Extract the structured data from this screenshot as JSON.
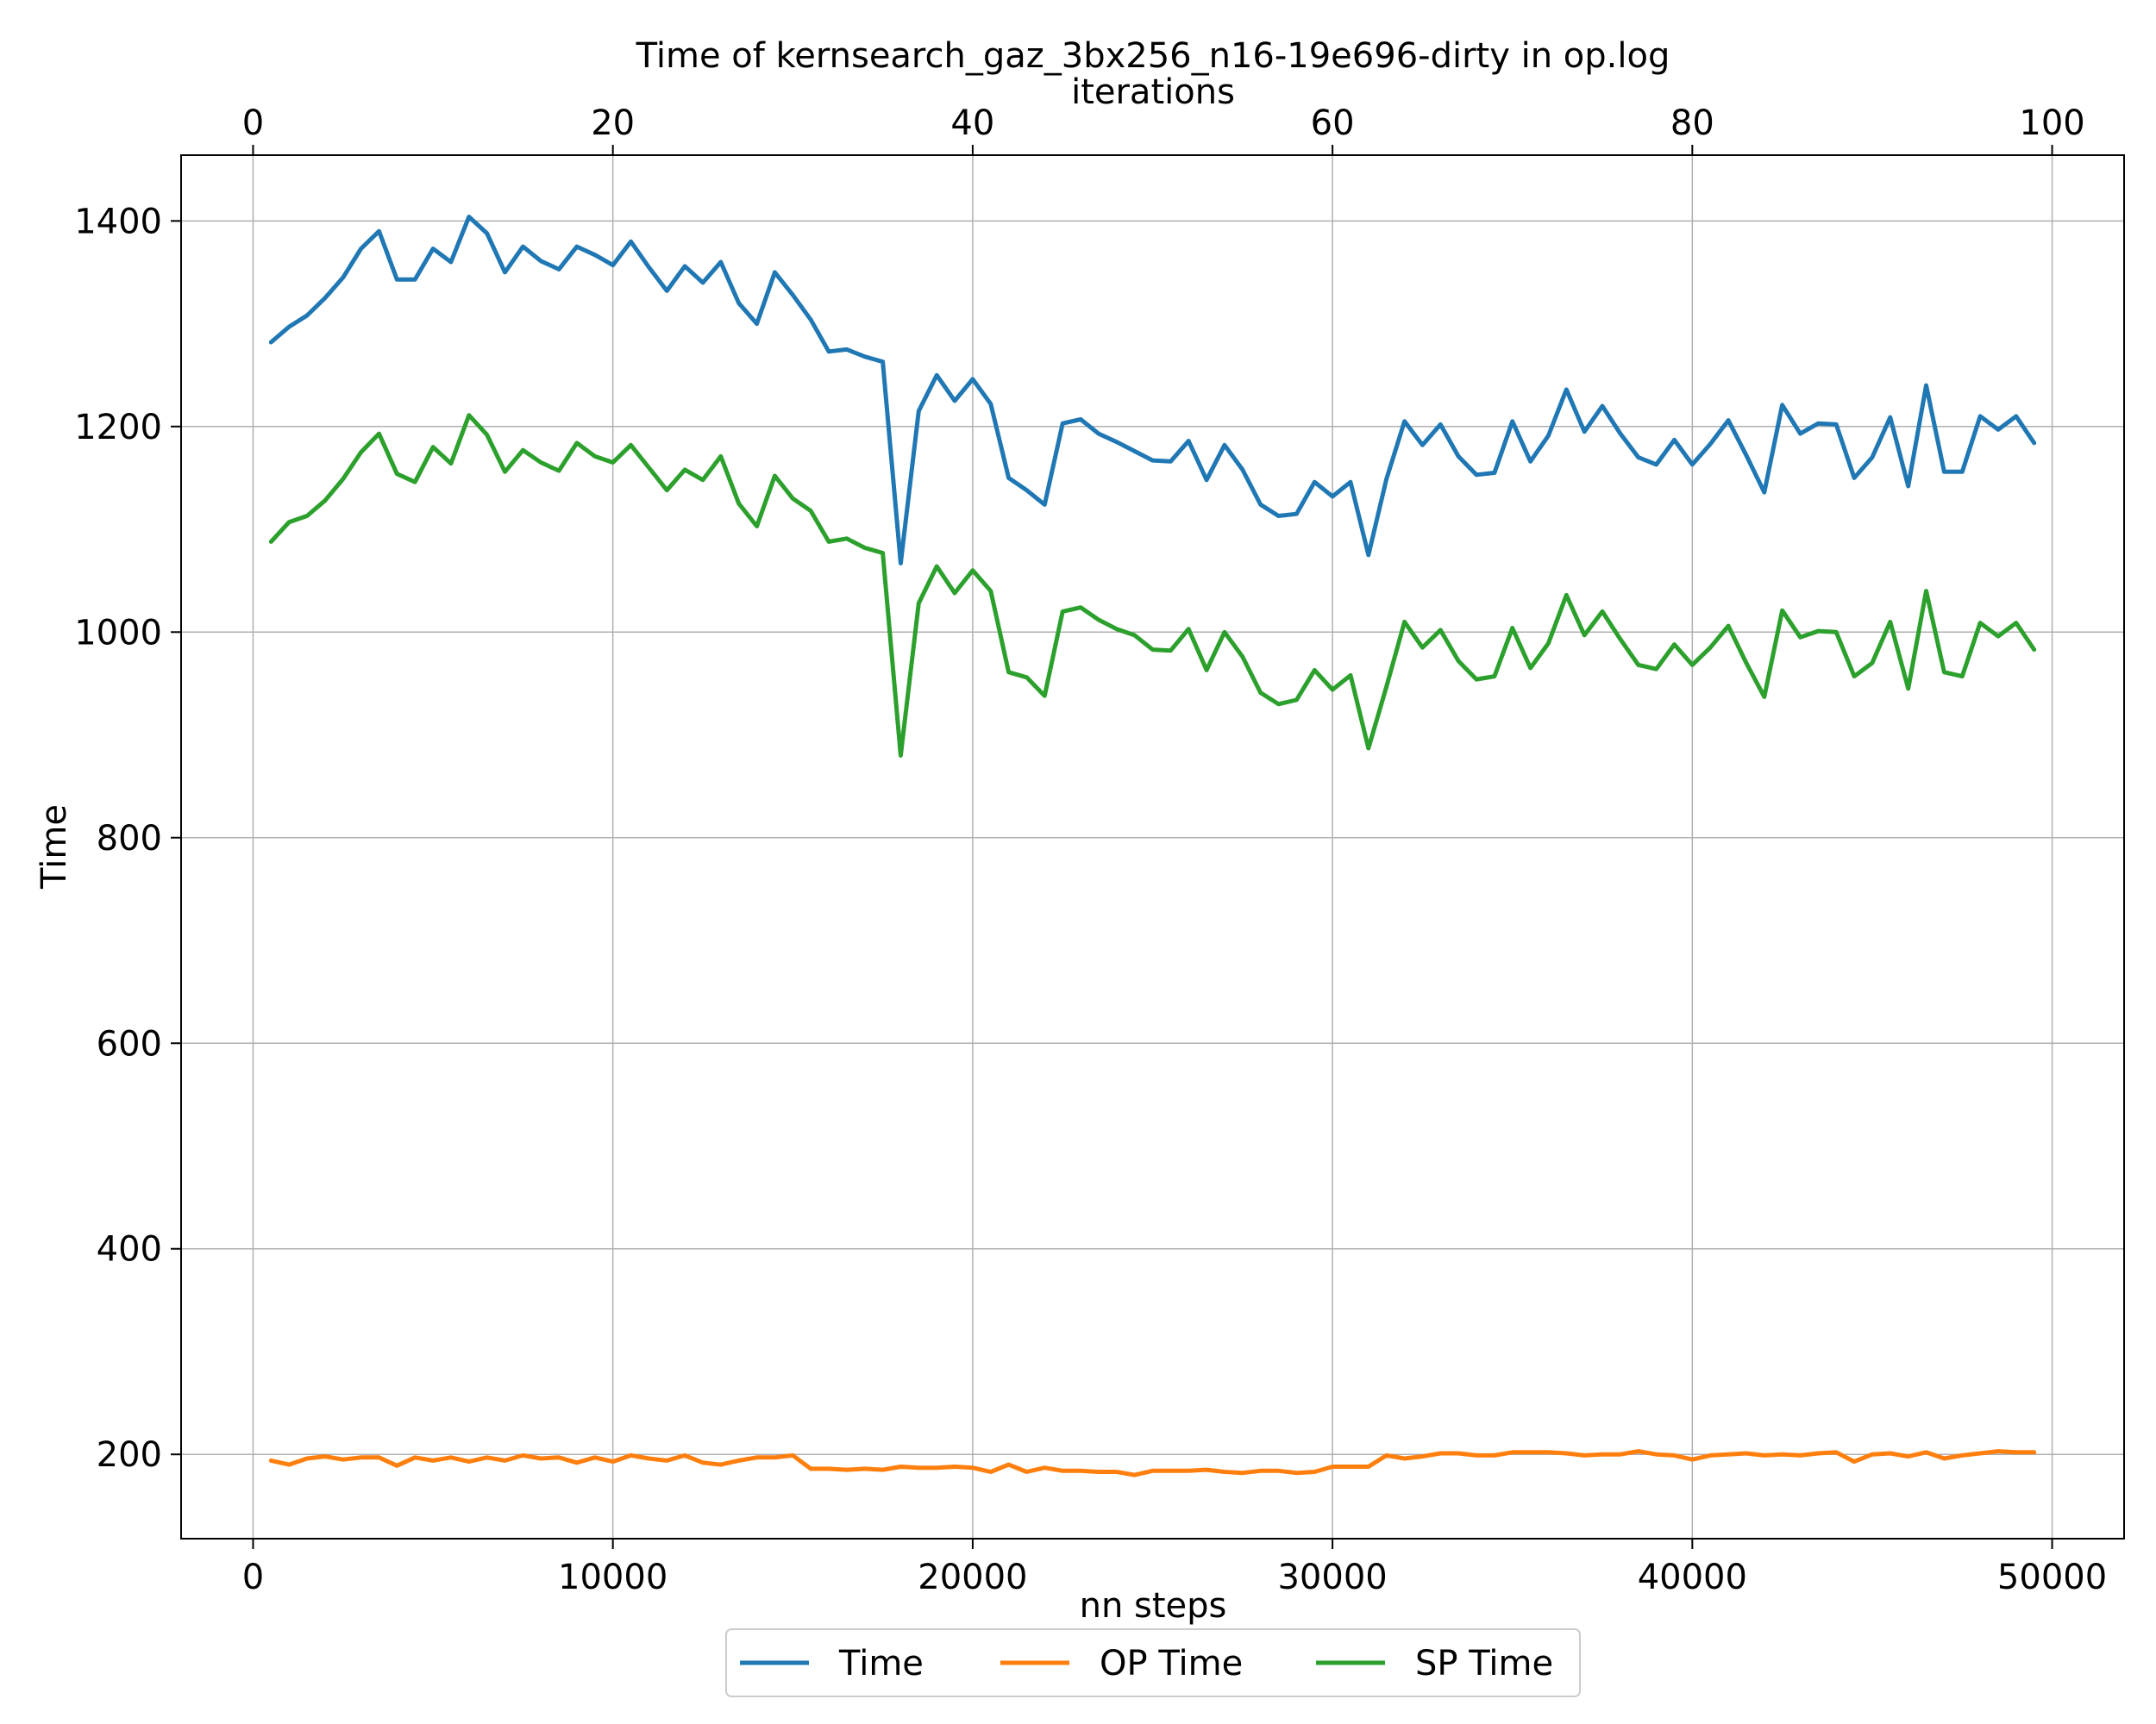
{
  "chart_data": {
    "type": "line",
    "title": "Time of kernsearch_gaz_3bx256_n16-19e696-dirty in op.log",
    "xlabel": "nn steps",
    "ylabel": "Time",
    "x2label": "iterations",
    "xlim": [
      -2000,
      52000
    ],
    "ylim": [
      118,
      1464
    ],
    "x2lim": [
      -4,
      104
    ],
    "x_ticks": [
      0,
      10000,
      20000,
      30000,
      40000,
      50000
    ],
    "y_ticks": [
      200,
      400,
      600,
      800,
      1000,
      1200,
      1400
    ],
    "x2_ticks": [
      0,
      20,
      40,
      60,
      80,
      100
    ],
    "grid": true,
    "legend_position": "bottom-center",
    "x": [
      500,
      1000,
      1500,
      2000,
      2500,
      3000,
      3500,
      4000,
      4500,
      5000,
      5500,
      6000,
      6500,
      7000,
      7500,
      8000,
      8500,
      9000,
      9500,
      10000,
      10500,
      11000,
      11500,
      12000,
      12500,
      13000,
      13500,
      14000,
      14500,
      15000,
      15500,
      16000,
      16500,
      17000,
      17500,
      18000,
      18500,
      19000,
      19500,
      20000,
      20500,
      21000,
      21500,
      22000,
      22500,
      23000,
      23500,
      24000,
      24500,
      25000,
      25500,
      26000,
      26500,
      27000,
      27500,
      28000,
      28500,
      29000,
      29500,
      30000,
      30500,
      31000,
      31500,
      32000,
      32500,
      33000,
      33500,
      34000,
      34500,
      35000,
      35500,
      36000,
      36500,
      37000,
      37500,
      38000,
      38500,
      39000,
      39500,
      40000,
      40500,
      41000,
      41500,
      42000,
      42500,
      43000,
      43500,
      44000,
      44500,
      45000,
      45500,
      46000,
      46500,
      47000,
      47500,
      48000,
      48500,
      49000,
      49500
    ],
    "series": [
      {
        "name": "Time",
        "color": "#1f77b4",
        "values": [
          1282,
          1297,
          1308,
          1325,
          1345,
          1373,
          1390,
          1343,
          1343,
          1373,
          1360,
          1404,
          1388,
          1350,
          1375,
          1361,
          1353,
          1375,
          1367,
          1357,
          1380,
          1355,
          1332,
          1356,
          1340,
          1360,
          1320,
          1300,
          1350,
          1328,
          1304,
          1273,
          1275,
          1268,
          1263,
          1067,
          1215,
          1250,
          1225,
          1246,
          1222,
          1150,
          1138,
          1124,
          1203,
          1207,
          1193,
          1185,
          1176,
          1167,
          1166,
          1186,
          1148,
          1182,
          1158,
          1124,
          1113,
          1115,
          1146,
          1132,
          1146,
          1075,
          1149,
          1205,
          1182,
          1202,
          1171,
          1153,
          1155,
          1205,
          1166,
          1191,
          1236,
          1195,
          1220,
          1193,
          1170,
          1163,
          1187,
          1163,
          1183,
          1206,
          1172,
          1136,
          1221,
          1193,
          1203,
          1202,
          1150,
          1170,
          1209,
          1142,
          1240,
          1156,
          1156,
          1210,
          1197,
          1210,
          1184
        ]
      },
      {
        "name": "OP Time",
        "color": "#ff7f0e",
        "values": [
          194,
          190,
          196,
          198,
          195,
          197,
          197,
          189,
          197,
          194,
          197,
          193,
          197,
          194,
          199,
          196,
          197,
          192,
          197,
          193,
          199,
          196,
          194,
          199,
          192,
          190,
          194,
          197,
          197,
          199,
          186,
          186,
          185,
          186,
          185,
          188,
          187,
          187,
          188,
          187,
          183,
          190,
          183,
          187,
          184,
          184,
          183,
          183,
          180,
          184,
          184,
          184,
          185,
          183,
          182,
          184,
          184,
          182,
          183,
          188,
          188,
          188,
          199,
          196,
          198,
          201,
          201,
          199,
          199,
          202,
          202,
          202,
          201,
          199,
          200,
          200,
          203,
          200,
          199,
          195,
          199,
          200,
          201,
          199,
          200,
          199,
          201,
          202,
          193,
          200,
          201,
          198,
          202,
          196,
          199,
          201,
          203,
          202,
          202
        ]
      },
      {
        "name": "SP Time",
        "color": "#2ca02c",
        "values": [
          1088,
          1107,
          1113,
          1128,
          1149,
          1175,
          1193,
          1154,
          1146,
          1180,
          1164,
          1211,
          1192,
          1156,
          1177,
          1165,
          1157,
          1184,
          1171,
          1165,
          1182,
          1160,
          1138,
          1158,
          1148,
          1171,
          1125,
          1103,
          1152,
          1130,
          1118,
          1088,
          1091,
          1082,
          1077,
          880,
          1028,
          1064,
          1038,
          1060,
          1040,
          961,
          956,
          938,
          1020,
          1024,
          1012,
          1003,
          997,
          983,
          982,
          1003,
          963,
          1000,
          976,
          941,
          930,
          934,
          963,
          944,
          958,
          887,
          947,
          1010,
          985,
          1002,
          972,
          954,
          957,
          1004,
          965,
          989,
          1036,
          997,
          1020,
          993,
          968,
          964,
          988,
          968,
          985,
          1006,
          970,
          937,
          1021,
          995,
          1001,
          1000,
          957,
          970,
          1010,
          945,
          1040,
          961,
          957,
          1009,
          996,
          1009,
          983
        ]
      }
    ]
  }
}
